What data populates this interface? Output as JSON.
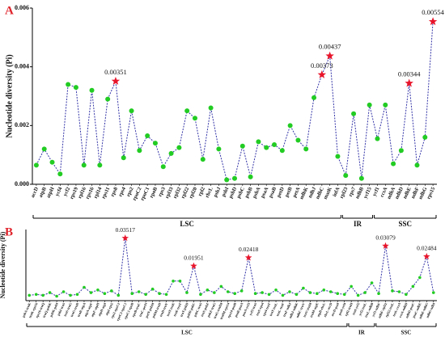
{
  "chart_data": [
    {
      "type": "line",
      "panel_label": "A",
      "ylabel": "Nucleotide diversity (Pi)",
      "categories": [
        "accD",
        "atpB",
        "atpH",
        "ycf4",
        "ycf2",
        "rps19",
        "rpl16",
        "rps16",
        "rpl14",
        "rps11",
        "rps8",
        "rps4",
        "rps2",
        "rpoC2",
        "rpoC1",
        "rpoB",
        "rps3",
        "rpl33",
        "rpl32",
        "rpl22",
        "rpl20",
        "rpl2",
        "rbcL",
        "psbJ",
        "psbI",
        "psbD",
        "psbC",
        "psbB",
        "psbA",
        "psaA",
        "psaB",
        "petD",
        "petB",
        "petA",
        "ndhK",
        "ndhJ",
        "ndhC",
        "matK",
        "infA",
        "rpl23",
        "rps7",
        "ndhB",
        "ycf15",
        "ycf1",
        "ccsA",
        "ndhA",
        "ndhD",
        "ndhE",
        "ndhF",
        "ndhG",
        "rps15"
      ],
      "values": [
        0.00065,
        0.0012,
        0.00075,
        0.00035,
        0.0034,
        0.0033,
        0.00065,
        0.0032,
        0.00065,
        0.0029,
        0.00351,
        0.0009,
        0.0025,
        0.00115,
        0.00165,
        0.0014,
        0.0006,
        0.00105,
        0.00125,
        0.0025,
        0.00225,
        0.00085,
        0.0026,
        0.0012,
        0.00015,
        0.0002,
        0.0013,
        0.00025,
        0.00145,
        0.00125,
        0.00135,
        0.00115,
        0.002,
        0.0015,
        0.0012,
        0.00295,
        0.00373,
        0.00437,
        0.00095,
        0.0003,
        0.0024,
        0.0002,
        0.0027,
        0.00155,
        0.0027,
        0.0007,
        0.00115,
        0.00344,
        0.00065,
        0.0016,
        0.00554
      ],
      "value_labels": [
        null,
        null,
        null,
        null,
        null,
        null,
        null,
        null,
        null,
        null,
        "0.00351",
        null,
        null,
        null,
        null,
        null,
        null,
        null,
        null,
        null,
        null,
        null,
        null,
        null,
        null,
        null,
        null,
        null,
        null,
        null,
        null,
        null,
        null,
        null,
        null,
        null,
        "0.00373",
        "0.00437",
        null,
        null,
        null,
        null,
        null,
        null,
        null,
        null,
        null,
        "0.00344",
        null,
        null,
        "0.00554"
      ],
      "line_color": "#3434a8",
      "point_color": "#22cc22",
      "highlight_color": "#e8142a",
      "ylim": [
        0,
        0.006
      ],
      "yticks": [
        {
          "value": 0,
          "label": "0.000"
        },
        {
          "value": 0.002,
          "label": "0.002"
        },
        {
          "value": 0.004,
          "label": "0.004"
        },
        {
          "value": 0.006,
          "label": "0.006"
        }
      ],
      "regions": [
        {
          "label": "LSC",
          "from": "accD",
          "to": "infA"
        },
        {
          "label": "IR",
          "from": "rpl23",
          "to": "ycf15"
        },
        {
          "label": "SSC",
          "from": "ycf1",
          "to": "rps15"
        }
      ]
    },
    {
      "type": "line",
      "panel_label": "B",
      "ylabel": "Nucleotide diversity (Pi)",
      "categories": [
        "psbA-trnK",
        "trnK-rps16",
        "rps16-trnQ",
        "trnQ-psbK",
        "psbK-psbI",
        "psbI-trnS",
        "trnS-trnG",
        "trnG-trnR",
        "trnR-atpA",
        "atpA-atpF",
        "atpF-atpH",
        "atpH-atpI",
        "atpI-rps2",
        "rps2-rpoC2",
        "rpoC2-rpoC1",
        "rpoC1-rpoB",
        "rpoB-trnC",
        "trnC-petN",
        "petN-psbM",
        "psbM-trnD",
        "trnD-trnY",
        "trnY-trnE",
        "trnE-trnT",
        "trnT-psbD",
        "psbD-psbC",
        "psbC-trnS",
        "trnS-psbZ",
        "psbZ-trnG",
        "trnG-trnfM",
        "trnfM-rps14",
        "rps14-psaB",
        "psaB-psaA",
        "psaA-ycf3",
        "ycf3-trnS",
        "trnS-rps4",
        "rps4-trnT",
        "trnT-trnL",
        "trnL-trnF",
        "trnF-ndhJ",
        "ndhJ-ndhK",
        "ndhC-trnV",
        "trnV-trnM",
        "trnM-atpE",
        "atpB-rbcL",
        "rbcL-accD",
        "accD-psaI",
        "psaI-ycf4",
        "rpl2-trnH",
        "trnI-ycf2",
        "ycf2-trnL",
        "trnL-ndhB",
        "ycf1-ndhF",
        "ndhF-rpl32",
        "rpl32-trnL",
        "trnL-ccsA",
        "ccsA-ndhD",
        "ndhD-psaC",
        "psaC-ndhE",
        "ndhE-ndhG",
        "ndhG-ndhI"
      ],
      "values": [
        0.003,
        0.0035,
        0.003,
        0.0045,
        0.0025,
        0.005,
        0.003,
        0.0035,
        0.0075,
        0.0045,
        0.006,
        0.004,
        0.0055,
        0.003,
        0.03517,
        0.004,
        0.005,
        0.0035,
        0.0065,
        0.004,
        0.0035,
        0.011,
        0.011,
        0.0045,
        0.01951,
        0.0035,
        0.006,
        0.0045,
        0.008,
        0.005,
        0.004,
        0.0055,
        0.02418,
        0.004,
        0.0045,
        0.0035,
        0.006,
        0.003,
        0.005,
        0.0035,
        0.007,
        0.0045,
        0.004,
        0.006,
        0.005,
        0.004,
        0.0035,
        0.008,
        0.003,
        0.0045,
        0.01,
        0.004,
        0.03079,
        0.0055,
        0.005,
        0.0035,
        0.008,
        0.013,
        0.02484,
        0.0045
      ],
      "value_labels": [
        null,
        null,
        null,
        null,
        null,
        null,
        null,
        null,
        null,
        null,
        null,
        null,
        null,
        null,
        "0.03517",
        null,
        null,
        null,
        null,
        null,
        null,
        null,
        null,
        null,
        "0.01951",
        null,
        null,
        null,
        null,
        null,
        null,
        null,
        "0.02418",
        null,
        null,
        null,
        null,
        null,
        null,
        null,
        null,
        null,
        null,
        null,
        null,
        null,
        null,
        null,
        null,
        null,
        null,
        null,
        "0.03079",
        null,
        null,
        null,
        null,
        null,
        "0.02484",
        null
      ],
      "line_color": "#3434a8",
      "point_color": "#22cc22",
      "highlight_color": "#e8142a",
      "ylim": [
        0,
        0.04
      ],
      "regions": [
        {
          "label": "LSC",
          "from": "psbA-trnK",
          "to": "psaI-ycf4"
        },
        {
          "label": "IR",
          "from": "rpl2-trnH",
          "to": "trnL-ndhB"
        },
        {
          "label": "SSC",
          "from": "ycf1-ndhF",
          "to": "ndhG-ndhI"
        }
      ]
    }
  ]
}
